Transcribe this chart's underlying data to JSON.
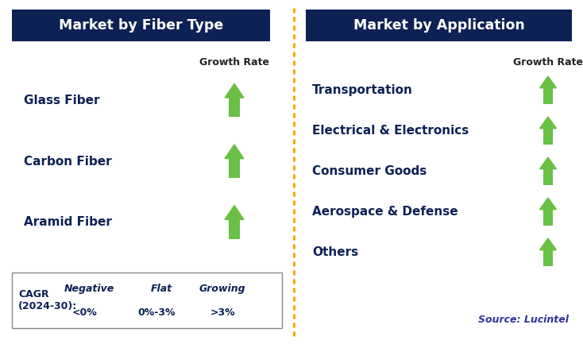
{
  "title_left": "Market by Fiber Type",
  "title_right": "Market by Application",
  "header_bg": "#0d2154",
  "header_text_color": "#ffffff",
  "left_items": [
    "Glass Fiber",
    "Carbon Fiber",
    "Aramid Fiber"
  ],
  "right_items": [
    "Transportation",
    "Electrical & Electronics",
    "Consumer Goods",
    "Aerospace & Defense",
    "Others"
  ],
  "item_text_color": "#0d2154",
  "growth_rate_label": "Growth Rate",
  "growth_rate_label_color": "#222222",
  "arrow_up_color": "#6abf45",
  "dashed_line_color": "#f5a800",
  "legend_cagr_line1": "CAGR",
  "legend_cagr_line2": "(2024-30):",
  "legend_negative_label": "Negative",
  "legend_negative_value": "<0%",
  "legend_flat_label": "Flat",
  "legend_flat_value": "0%-3%",
  "legend_growing_label": "Growing",
  "legend_growing_value": ">3%",
  "legend_text_color": "#0d2154",
  "legend_down_color": "#bb1111",
  "legend_flat_color": "#f5a800",
  "legend_up_color": "#6abf45",
  "source_text": "Source: Lucintel",
  "source_text_color": "#333399",
  "bg_color": "#ffffff",
  "fig_w": 7.34,
  "fig_h": 4.33,
  "dpi": 100
}
